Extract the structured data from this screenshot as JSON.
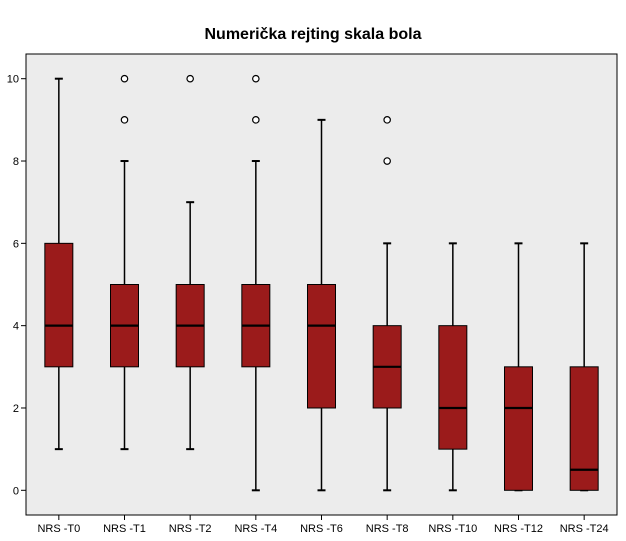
{
  "chart_data": {
    "type": "boxplot",
    "title": "Numerička rejting skala bola",
    "xlabel": "",
    "ylabel": "",
    "ylim": [
      -0.6,
      10.6
    ],
    "yticks": [
      0,
      2,
      4,
      6,
      8,
      10
    ],
    "grid": false,
    "colors": {
      "box_fill": "#9b1b1b",
      "plot_background": "#ececec",
      "outlier_fill": "#ffffff",
      "line": "#000000"
    },
    "categories": [
      "NRS -T0",
      "NRS -T1",
      "NRS -T2",
      "NRS -T4",
      "NRS -T6",
      "NRS -T8",
      "NRS -T10",
      "NRS -T12",
      "NRS -T24"
    ],
    "boxes": [
      {
        "label": "NRS -T0",
        "whisker_low": 1,
        "q1": 3,
        "median": 4,
        "q3": 6,
        "whisker_high": 10,
        "outliers": []
      },
      {
        "label": "NRS -T1",
        "whisker_low": 1,
        "q1": 3,
        "median": 4,
        "q3": 5,
        "whisker_high": 8,
        "outliers": [
          9,
          10
        ]
      },
      {
        "label": "NRS -T2",
        "whisker_low": 1,
        "q1": 3,
        "median": 4,
        "q3": 5,
        "whisker_high": 7,
        "outliers": [
          10
        ]
      },
      {
        "label": "NRS -T4",
        "whisker_low": 0,
        "q1": 3,
        "median": 4,
        "q3": 5,
        "whisker_high": 8,
        "outliers": [
          9,
          10
        ]
      },
      {
        "label": "NRS -T6",
        "whisker_low": 0,
        "q1": 2,
        "median": 4,
        "q3": 5,
        "whisker_high": 9,
        "outliers": []
      },
      {
        "label": "NRS -T8",
        "whisker_low": 0,
        "q1": 2,
        "median": 3,
        "q3": 4,
        "whisker_high": 6,
        "outliers": [
          8,
          9
        ]
      },
      {
        "label": "NRS -T10",
        "whisker_low": 0,
        "q1": 1,
        "median": 2,
        "q3": 4,
        "whisker_high": 6,
        "outliers": []
      },
      {
        "label": "NRS -T12",
        "whisker_low": 0,
        "q1": 0,
        "median": 2,
        "q3": 3,
        "whisker_high": 6,
        "outliers": []
      },
      {
        "label": "NRS -T24",
        "whisker_low": 0,
        "q1": 0,
        "median": 0.5,
        "q3": 3,
        "whisker_high": 6,
        "outliers": []
      }
    ]
  }
}
